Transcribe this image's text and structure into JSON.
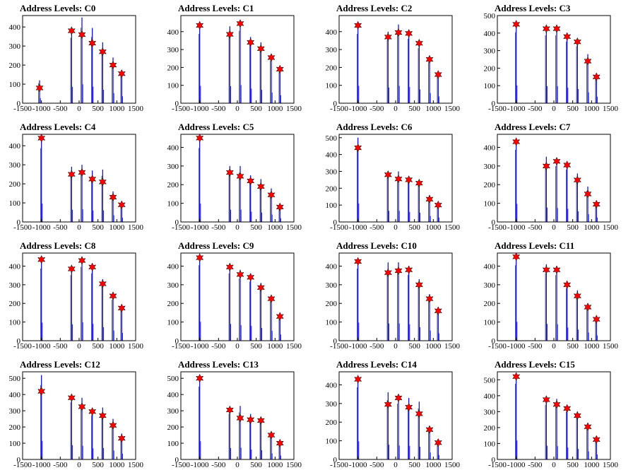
{
  "colors": {
    "histogram": "#0000ff",
    "marker": "#ff0000",
    "marker_outline": "#000000",
    "axis": "#000000",
    "background": "#ffffff"
  },
  "x_ticks": [
    -1500,
    -1000,
    -500,
    0,
    500,
    1000,
    1500
  ],
  "x_tick_labels": [
    "-1500",
    "-1000",
    "-500",
    "0",
    "500",
    "1000",
    "1500"
  ],
  "chart_data": [
    {
      "type": "bar",
      "title": "Address Levels: C0",
      "xlim": [
        -1500,
        1500
      ],
      "ylim": [
        0,
        460
      ],
      "yticks": [
        0,
        100,
        200,
        300,
        400
      ],
      "levels": [
        -1050,
        -200,
        75,
        350,
        625,
        900,
        1130
      ],
      "peaks": [
        120,
        390,
        450,
        395,
        320,
        240,
        165
      ],
      "markers": [
        80,
        380,
        360,
        315,
        270,
        200,
        155
      ]
    },
    {
      "type": "bar",
      "title": "Address Levels: C1",
      "xlim": [
        -1500,
        1500
      ],
      "ylim": [
        0,
        490
      ],
      "yticks": [
        0,
        100,
        200,
        300,
        400
      ],
      "levels": [
        -1000,
        -200,
        75,
        350,
        625,
        900,
        1130
      ],
      "peaks": [
        440,
        430,
        460,
        370,
        340,
        270,
        200
      ],
      "markers": [
        435,
        385,
        445,
        340,
        305,
        255,
        190
      ]
    },
    {
      "type": "bar",
      "title": "Address Levels: C2",
      "xlim": [
        -1500,
        1500
      ],
      "ylim": [
        0,
        490
      ],
      "yticks": [
        0,
        100,
        200,
        300,
        400
      ],
      "levels": [
        -1000,
        -200,
        75,
        350,
        625,
        900,
        1130
      ],
      "peaks": [
        440,
        400,
        440,
        410,
        350,
        260,
        170
      ],
      "markers": [
        435,
        370,
        395,
        390,
        335,
        245,
        160
      ]
    },
    {
      "type": "bar",
      "title": "Address Levels: C3",
      "xlim": [
        -1500,
        1500
      ],
      "ylim": [
        0,
        500
      ],
      "yticks": [
        0,
        100,
        200,
        300,
        400,
        500
      ],
      "levels": [
        -1000,
        -200,
        75,
        350,
        625,
        900,
        1130
      ],
      "peaks": [
        460,
        440,
        440,
        400,
        370,
        280,
        170
      ],
      "markers": [
        450,
        425,
        425,
        380,
        350,
        240,
        150
      ]
    },
    {
      "type": "bar",
      "title": "Address Levels: C4",
      "xlim": [
        -1500,
        1500
      ],
      "ylim": [
        0,
        460
      ],
      "yticks": [
        0,
        100,
        200,
        300,
        400
      ],
      "levels": [
        -1000,
        -200,
        75,
        350,
        625,
        900,
        1130
      ],
      "peaks": [
        440,
        290,
        300,
        270,
        275,
        160,
        100
      ],
      "markers": [
        440,
        250,
        260,
        225,
        210,
        130,
        90
      ]
    },
    {
      "type": "bar",
      "title": "Address Levels: C5",
      "xlim": [
        -1500,
        1500
      ],
      "ylim": [
        0,
        470
      ],
      "yticks": [
        0,
        100,
        200,
        300,
        400
      ],
      "levels": [
        -1000,
        -200,
        75,
        350,
        625,
        900,
        1130
      ],
      "peaks": [
        450,
        300,
        300,
        250,
        230,
        180,
        90
      ],
      "markers": [
        450,
        265,
        245,
        220,
        190,
        145,
        80
      ]
    },
    {
      "type": "bar",
      "title": "Address Levels: C6",
      "xlim": [
        -1500,
        1500
      ],
      "ylim": [
        0,
        520
      ],
      "yticks": [
        0,
        100,
        200,
        300,
        400,
        500
      ],
      "levels": [
        -1000,
        -200,
        75,
        350,
        625,
        900,
        1130
      ],
      "peaks": [
        500,
        300,
        300,
        270,
        250,
        160,
        120
      ],
      "markers": [
        440,
        280,
        255,
        250,
        230,
        135,
        100
      ]
    },
    {
      "type": "bar",
      "title": "Address Levels: C7",
      "xlim": [
        -1500,
        1500
      ],
      "ylim": [
        0,
        470
      ],
      "yticks": [
        0,
        100,
        200,
        300,
        400
      ],
      "levels": [
        -1000,
        -200,
        75,
        350,
        625,
        900,
        1130
      ],
      "peaks": [
        440,
        350,
        340,
        320,
        260,
        190,
        110
      ],
      "markers": [
        430,
        300,
        325,
        305,
        225,
        150,
        95
      ]
    },
    {
      "type": "bar",
      "title": "Address Levels: C8",
      "xlim": [
        -1500,
        1500
      ],
      "ylim": [
        0,
        470
      ],
      "yticks": [
        0,
        100,
        200,
        300,
        400
      ],
      "levels": [
        -1000,
        -200,
        75,
        350,
        625,
        900,
        1130
      ],
      "peaks": [
        440,
        400,
        450,
        410,
        330,
        250,
        190
      ],
      "markers": [
        435,
        385,
        430,
        395,
        305,
        240,
        175
      ]
    },
    {
      "type": "bar",
      "title": "Address Levels: C9",
      "xlim": [
        -1500,
        1500
      ],
      "ylim": [
        0,
        470
      ],
      "yticks": [
        0,
        100,
        200,
        300,
        400
      ],
      "levels": [
        -1000,
        -200,
        75,
        350,
        625,
        900,
        1130
      ],
      "peaks": [
        460,
        410,
        380,
        360,
        310,
        240,
        150
      ],
      "markers": [
        445,
        395,
        355,
        340,
        285,
        225,
        130
      ]
    },
    {
      "type": "bar",
      "title": "Address Levels: C10",
      "xlim": [
        -1500,
        1500
      ],
      "ylim": [
        0,
        470
      ],
      "yticks": [
        0,
        100,
        200,
        300,
        400
      ],
      "levels": [
        -1000,
        -200,
        75,
        350,
        625,
        900,
        1130
      ],
      "peaks": [
        440,
        420,
        420,
        400,
        330,
        250,
        180
      ],
      "markers": [
        425,
        365,
        375,
        380,
        300,
        225,
        160
      ]
    },
    {
      "type": "bar",
      "title": "Address Levels: C11",
      "xlim": [
        -1500,
        1500
      ],
      "ylim": [
        0,
        470
      ],
      "yticks": [
        0,
        100,
        200,
        300,
        400
      ],
      "levels": [
        -1000,
        -200,
        75,
        350,
        625,
        900,
        1130
      ],
      "peaks": [
        460,
        410,
        400,
        320,
        270,
        200,
        130
      ],
      "markers": [
        450,
        380,
        380,
        300,
        240,
        180,
        115
      ]
    },
    {
      "type": "bar",
      "title": "Address Levels: C12",
      "xlim": [
        -1500,
        1500
      ],
      "ylim": [
        0,
        540
      ],
      "yticks": [
        0,
        100,
        200,
        300,
        400,
        500
      ],
      "levels": [
        -1000,
        -200,
        75,
        350,
        625,
        900,
        1130
      ],
      "peaks": [
        520,
        400,
        380,
        310,
        320,
        250,
        160
      ],
      "markers": [
        420,
        380,
        325,
        295,
        270,
        210,
        130
      ]
    },
    {
      "type": "bar",
      "title": "Address Levels: C13",
      "xlim": [
        -1500,
        1500
      ],
      "ylim": [
        0,
        540
      ],
      "yticks": [
        0,
        100,
        200,
        300,
        400,
        500
      ],
      "levels": [
        -1000,
        -200,
        75,
        350,
        625,
        900,
        1130
      ],
      "peaks": [
        510,
        320,
        330,
        280,
        260,
        170,
        110
      ],
      "markers": [
        500,
        305,
        255,
        245,
        240,
        150,
        100
      ]
    },
    {
      "type": "bar",
      "title": "Address Levels: C14",
      "xlim": [
        -1500,
        1500
      ],
      "ylim": [
        0,
        470
      ],
      "yticks": [
        0,
        100,
        200,
        300,
        400
      ],
      "levels": [
        -1000,
        -200,
        75,
        350,
        625,
        900,
        1130
      ],
      "peaks": [
        440,
        360,
        340,
        330,
        310,
        170,
        110
      ],
      "markers": [
        430,
        295,
        330,
        280,
        245,
        160,
        90
      ]
    },
    {
      "type": "bar",
      "title": "Address Levels: C15",
      "xlim": [
        -1500,
        1500
      ],
      "ylim": [
        0,
        550
      ],
      "yticks": [
        0,
        100,
        200,
        300,
        400,
        500
      ],
      "levels": [
        -1000,
        -200,
        75,
        350,
        625,
        900,
        1130
      ],
      "peaks": [
        540,
        390,
        380,
        340,
        300,
        230,
        140
      ],
      "markers": [
        520,
        375,
        345,
        320,
        275,
        205,
        125
      ]
    }
  ]
}
